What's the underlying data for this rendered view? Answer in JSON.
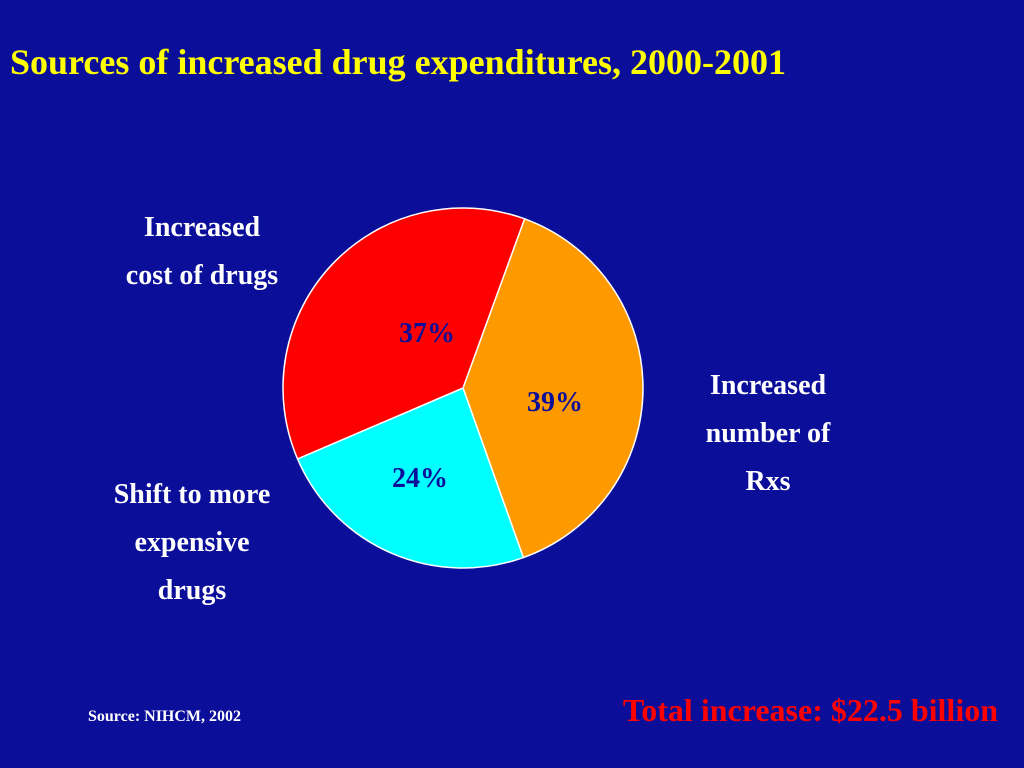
{
  "slide": {
    "background_color": "#0b0e99",
    "source": "Source: NIHCM, 2002",
    "total": "Total increase: $22.5 billion"
  },
  "chart_data": {
    "type": "pie",
    "title": "Sources of increased drug expenditures, 2000-2001",
    "slices": [
      {
        "label_lines": [
          "Increased",
          "number of",
          "Rxs"
        ],
        "value": 39,
        "value_label": "39%",
        "color": "#ff9900"
      },
      {
        "label_lines": [
          "Shift to more",
          "expensive",
          "drugs"
        ],
        "value": 24,
        "value_label": "24%",
        "color": "#00ffff"
      },
      {
        "label_lines": [
          "Increased",
          "cost of drugs"
        ],
        "value": 37,
        "value_label": "37%",
        "color": "#ff0000"
      }
    ],
    "start_angle_deg": 20,
    "direction": "clockwise"
  }
}
